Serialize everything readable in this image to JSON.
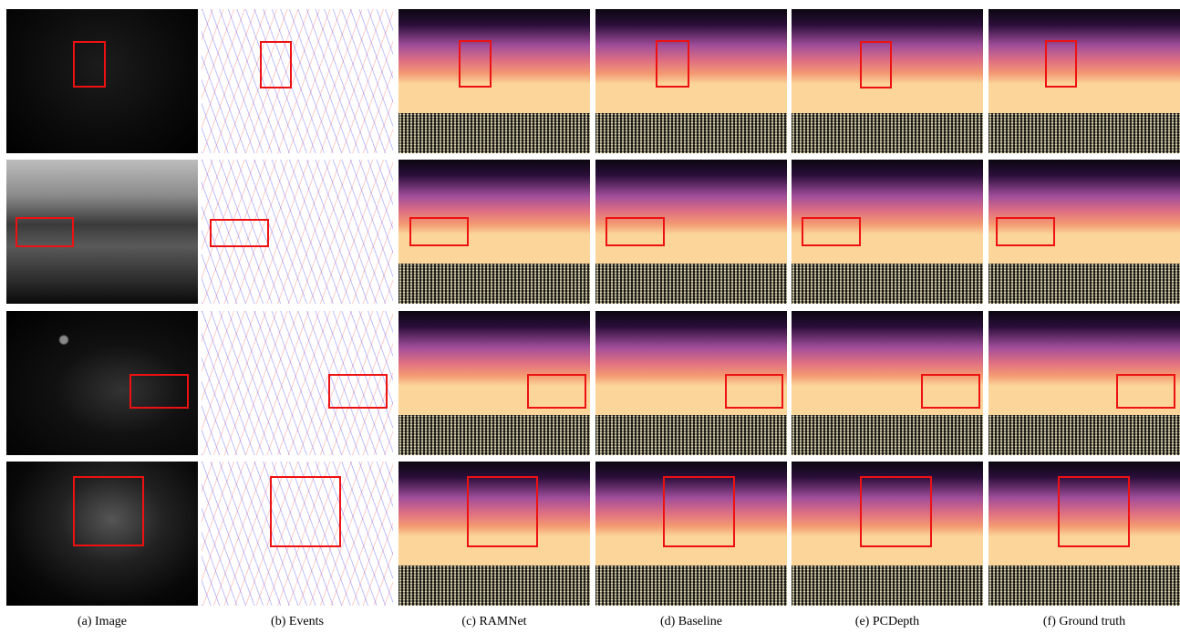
{
  "captions": [
    "(a) Image",
    "(b) Events",
    "(c) RAMNet",
    "(d) Baseline",
    "(e) PCDepth",
    "(f) Ground truth"
  ]
}
